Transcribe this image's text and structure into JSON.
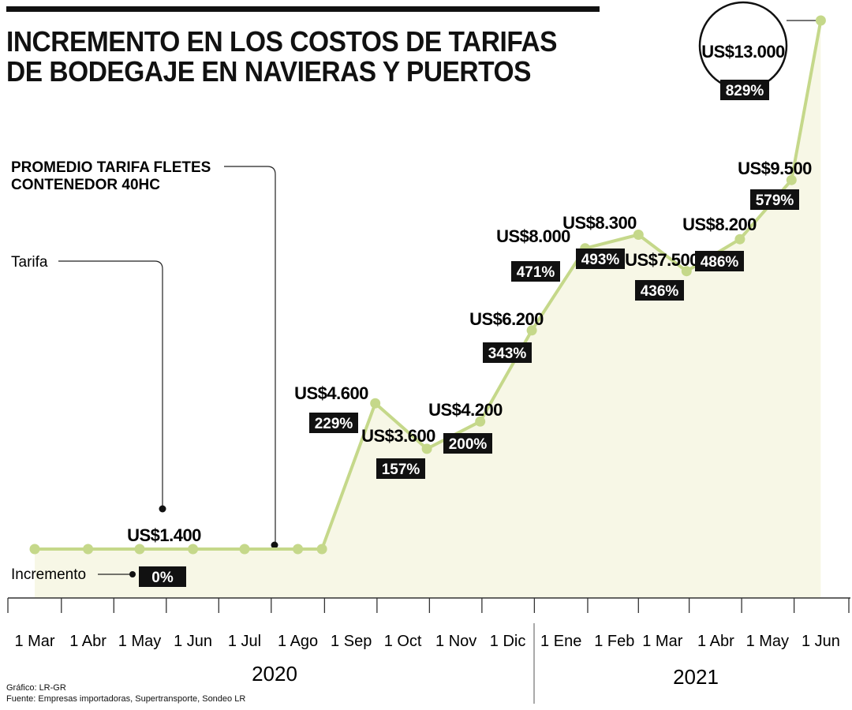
{
  "title": "INCREMENTO EN LOS COSTOS DE TARIFAS DE BODEGAJE EN NAVIERAS Y PUERTOS",
  "annotations": {
    "fletes": "PROMEDIO TARIFA FLETES CONTENEDOR 40HC",
    "tarifa": "Tarifa",
    "incremento": "Incremento"
  },
  "years": [
    "2020",
    "2021"
  ],
  "footer": {
    "credit": "Gráfico: LR-GR",
    "source": "Fuente: Empresas importadoras, Supertransporte, Sondeo LR"
  },
  "colors": {
    "line": "#c5d88a",
    "area": "#f7f7e6",
    "label_bg": "#111111"
  },
  "chart_data": {
    "type": "line",
    "title": "INCREMENTO EN LOS COSTOS DE TARIFAS DE BODEGAJE EN NAVIERAS Y PUERTOS",
    "x_ticks": [
      "1 Mar",
      "1 Abr",
      "1 May",
      "1 Jun",
      "1 Jul",
      "1 Ago",
      "1 Sep",
      "1 Oct",
      "1 Nov",
      "1 Dic",
      "1 Ene",
      "1 Feb",
      "1 Mar",
      "1 Abr",
      "1 May",
      "1 Jun"
    ],
    "x": [
      "2020-03-01",
      "2020-04-01",
      "2020-05-01",
      "2020-06-01",
      "2020-07-01",
      "2020-08-01",
      "2020-08-15",
      "2020-09-15",
      "2020-10-15",
      "2020-11-15",
      "2020-12-15",
      "2021-01-15",
      "2021-02-15",
      "2021-03-15",
      "2021-04-15",
      "2021-05-15",
      "2021-06-01"
    ],
    "series": [
      {
        "values": [
          1400,
          1400,
          1400,
          1400,
          1400,
          1400,
          1400,
          4600,
          3600,
          4200,
          6200,
          8000,
          8300,
          7500,
          8200,
          9500,
          13000
        ]
      }
    ],
    "value_labels": [
      {
        "index": 2,
        "text": "US$1.400"
      },
      {
        "index": 7,
        "text": "US$4.600"
      },
      {
        "index": 8,
        "text": "US$3.600"
      },
      {
        "index": 9,
        "text": "US$4.200"
      },
      {
        "index": 10,
        "text": "US$6.200"
      },
      {
        "index": 11,
        "text": "US$8.000"
      },
      {
        "index": 12,
        "text": "US$8.300"
      },
      {
        "index": 13,
        "text": "US$7.500"
      },
      {
        "index": 14,
        "text": "US$8.200"
      },
      {
        "index": 15,
        "text": "US$9.500"
      },
      {
        "index": 16,
        "text": "US$13.000"
      }
    ],
    "pct_labels": [
      {
        "index": 2,
        "text": "0%"
      },
      {
        "index": 7,
        "text": "229%"
      },
      {
        "index": 8,
        "text": "157%"
      },
      {
        "index": 9,
        "text": "200%"
      },
      {
        "index": 10,
        "text": "343%"
      },
      {
        "index": 11,
        "text": "471%"
      },
      {
        "index": 12,
        "text": "493%"
      },
      {
        "index": 13,
        "text": "436%"
      },
      {
        "index": 14,
        "text": "486%"
      },
      {
        "index": 15,
        "text": "579%"
      },
      {
        "index": 16,
        "text": "829%"
      }
    ]
  }
}
